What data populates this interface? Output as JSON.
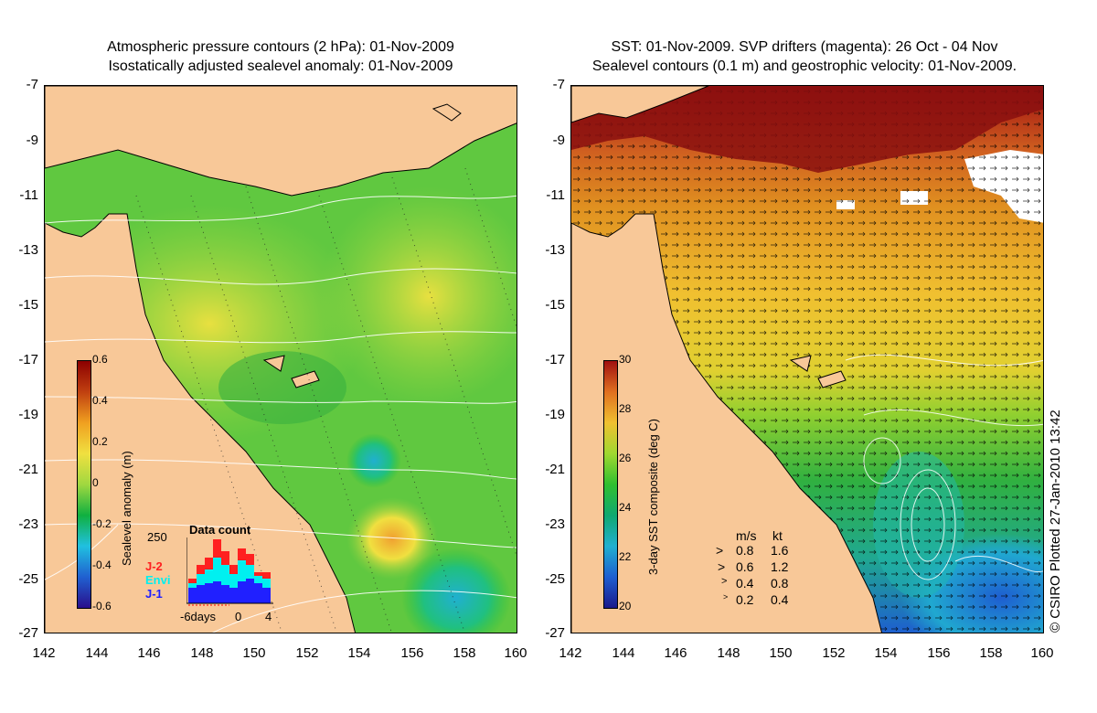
{
  "left_panel": {
    "title_line1": "Atmospheric pressure contours (2 hPa): 01-Nov-2009",
    "title_line2": "Isostatically adjusted sealevel anomaly: 01-Nov-2009",
    "y_ticks": [
      "-7",
      "-9",
      "-11",
      "-13",
      "-15",
      "-17",
      "-19",
      "-21",
      "-23",
      "-25",
      "-27"
    ],
    "x_ticks": [
      "142",
      "144",
      "146",
      "148",
      "150",
      "152",
      "154",
      "156",
      "158",
      "160"
    ],
    "colorbar": {
      "title": "Sealevel anomaly (m)",
      "labels": [
        "0.6",
        "0.4",
        "0.2",
        "0",
        "-0.2",
        "-0.4",
        "-0.6"
      ]
    },
    "data_count": {
      "title": "Data count",
      "max_label": "250",
      "series_labels": [
        "J-2",
        "Envi",
        "J-1"
      ],
      "series_colors": [
        "#ff2020",
        "#00f0f0",
        "#2020ff"
      ],
      "x_labels": [
        "-6days",
        "0",
        "4"
      ]
    }
  },
  "right_panel": {
    "title_line1": "SST: 01-Nov-2009. SVP drifters (magenta): 26 Oct - 04 Nov",
    "title_line2": "Sealevel contours (0.1 m) and geostrophic velocity: 01-Nov-2009.",
    "y_ticks": [
      "-7",
      "-9",
      "-11",
      "-13",
      "-15",
      "-17",
      "-19",
      "-21",
      "-23",
      "-25",
      "-27"
    ],
    "x_ticks": [
      "142",
      "144",
      "146",
      "148",
      "150",
      "152",
      "154",
      "156",
      "158",
      "160"
    ],
    "colorbar": {
      "title": "3-day SST composite (deg C)",
      "labels": [
        "30",
        "28",
        "26",
        "24",
        "22",
        "20"
      ]
    },
    "velocity_legend": {
      "header_ms": "m/s",
      "header_kt": "kt",
      "rows": [
        {
          "ms": "0.8",
          "kt": "1.6"
        },
        {
          "ms": "0.6",
          "kt": "1.2"
        },
        {
          "ms": "0.4",
          "kt": "0.8"
        },
        {
          "ms": "0.2",
          "kt": "0.4"
        }
      ]
    },
    "copyright": "© CSIRO Plotted 27-Jan-2010 13:42"
  },
  "colors": {
    "land": "#f8c898",
    "sla_scale": [
      "#2a0f8c",
      "#2060d0",
      "#20c0e0",
      "#10b040",
      "#a0d840",
      "#f0e040",
      "#f0a020",
      "#c04010",
      "#8c0000"
    ],
    "sst_scale": [
      "#1a1a8c",
      "#1e5ed0",
      "#20b0d0",
      "#10a870",
      "#30c030",
      "#a0d830",
      "#f0c030",
      "#e07020",
      "#a01010"
    ]
  }
}
